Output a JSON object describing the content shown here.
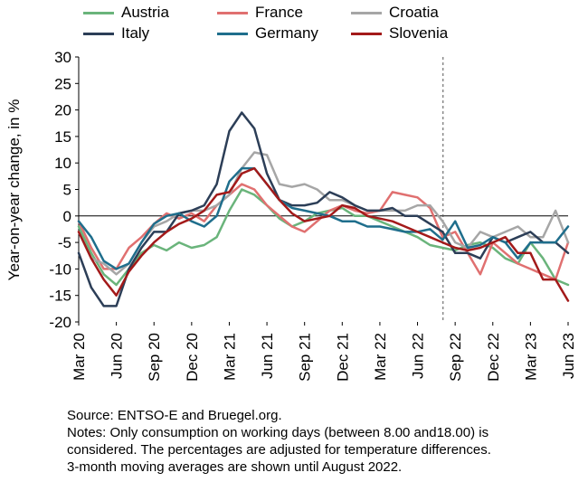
{
  "chart_data": {
    "type": "line",
    "ylabel": "Year-on-year change, in %",
    "ylim": [
      -20,
      30
    ],
    "yticks": [
      30,
      25,
      20,
      15,
      10,
      5,
      0,
      -5,
      -10,
      -15,
      -20
    ],
    "xtick_labels": [
      "Mar 20",
      "Jun 20",
      "Sep 20",
      "Dec 20",
      "Mar 21",
      "Jun 21",
      "Sep 21",
      "Dec 21",
      "Mar 22",
      "Jun 22",
      "Sep 22",
      "Dec 22",
      "Mar 23",
      "Jun 23"
    ],
    "x": [
      "Mar 20",
      "Apr 20",
      "May 20",
      "Jun 20",
      "Jul 20",
      "Aug 20",
      "Sep 20",
      "Oct 20",
      "Nov 20",
      "Dec 20",
      "Jan 21",
      "Feb 21",
      "Mar 21",
      "Apr 21",
      "May 21",
      "Jun 21",
      "Jul 21",
      "Aug 21",
      "Sep 21",
      "Oct 21",
      "Nov 21",
      "Dec 21",
      "Jan 22",
      "Feb 22",
      "Mar 22",
      "Apr 22",
      "May 22",
      "Jun 22",
      "Jul 22",
      "Aug 22",
      "Sep 22",
      "Oct 22",
      "Nov 22",
      "Dec 22",
      "Jan 23",
      "Feb 23",
      "Mar 23",
      "Apr 23",
      "May 23",
      "Jun 23"
    ],
    "vertical_line_at": "Aug 22",
    "legend_position": "top",
    "grid": false,
    "series": [
      {
        "name": "Austria",
        "color": "#6ab47b",
        "values": [
          -2,
          -7,
          -11,
          -13,
          -10,
          -7,
          -5.5,
          -6.5,
          -5,
          -6,
          -5.5,
          -4,
          1,
          5,
          4,
          2,
          -0.5,
          -2,
          -1,
          0.5,
          1,
          1.5,
          0,
          0,
          -1,
          -2,
          -3,
          -4,
          -5.5,
          -6,
          -6.5,
          -5.5,
          -5,
          -6,
          -8,
          -9,
          -5,
          -8,
          -12,
          -13
        ]
      },
      {
        "name": "France",
        "color": "#e07070",
        "values": [
          -1,
          -6,
          -10,
          -10,
          -6,
          -4,
          -1.5,
          0.5,
          -0.5,
          0.5,
          -1,
          2,
          4,
          6,
          5,
          2,
          0,
          -2,
          -3,
          -1,
          1,
          2,
          1,
          0.5,
          1,
          4.5,
          4,
          3.5,
          1.5,
          -4,
          -3,
          -7,
          -11,
          -5,
          -7,
          -9,
          -10,
          -11,
          -12,
          -5
        ]
      },
      {
        "name": "Croatia",
        "color": "#a6a6a6",
        "values": [
          -3,
          -8,
          -9,
          -11,
          -9,
          -5,
          -2,
          -1,
          0.5,
          1,
          1,
          2,
          4,
          9,
          12,
          11.5,
          6,
          5.5,
          6,
          5,
          3,
          3,
          2,
          1,
          1,
          1,
          1,
          2,
          2,
          -1,
          -5,
          -6,
          -3,
          -4,
          -3,
          -2,
          -4,
          -4,
          1,
          -5
        ]
      },
      {
        "name": "Italy",
        "color": "#2c3e57",
        "values": [
          -7,
          -13.5,
          -17,
          -17,
          -10,
          -6,
          -3,
          -3,
          0.5,
          1,
          2,
          6,
          16,
          19.5,
          16.5,
          8,
          3,
          2,
          2,
          2.5,
          4.5,
          3.5,
          2,
          1,
          1,
          1.5,
          0,
          0,
          -1.5,
          -3,
          -7,
          -7,
          -8,
          -4,
          -5,
          -4,
          -3,
          -5,
          -5,
          -7
        ]
      },
      {
        "name": "Germany",
        "color": "#1f6e8c",
        "values": [
          -1,
          -4,
          -8.5,
          -10,
          -9,
          -5,
          -1.5,
          0,
          0.5,
          -1,
          -2,
          0,
          6.5,
          9,
          9,
          6,
          3,
          1.5,
          1,
          0.5,
          0,
          -1,
          -1,
          -2,
          -2,
          -2.5,
          -3,
          -3,
          -2.5,
          -4.5,
          -1,
          -6,
          -5.5,
          -4,
          -5,
          -8,
          -5,
          -5,
          -5,
          -2
        ]
      },
      {
        "name": "Slovenia",
        "color": "#a31a1a",
        "values": [
          -3,
          -8,
          -12,
          -15,
          -10.5,
          -7.5,
          -5,
          -3,
          -1.5,
          -0.5,
          1,
          4,
          4.5,
          8,
          9,
          6,
          3,
          0.5,
          -1,
          -0.5,
          0,
          2,
          1.5,
          0,
          -0.5,
          -1,
          -2,
          -3,
          -4,
          -5,
          -6,
          -6.5,
          -6,
          -5,
          -4,
          -7,
          -7,
          -12,
          -12,
          -16
        ]
      }
    ]
  },
  "notes": {
    "line1": "Source: ENTSO-E and Bruegel.org.",
    "line2": "Notes: Only consumption on working days (between 8.00 and18.00) is",
    "line3": "considered. The percentages are adjusted for temperature differences.",
    "line4": "3-month moving averages are shown until August 2022."
  }
}
